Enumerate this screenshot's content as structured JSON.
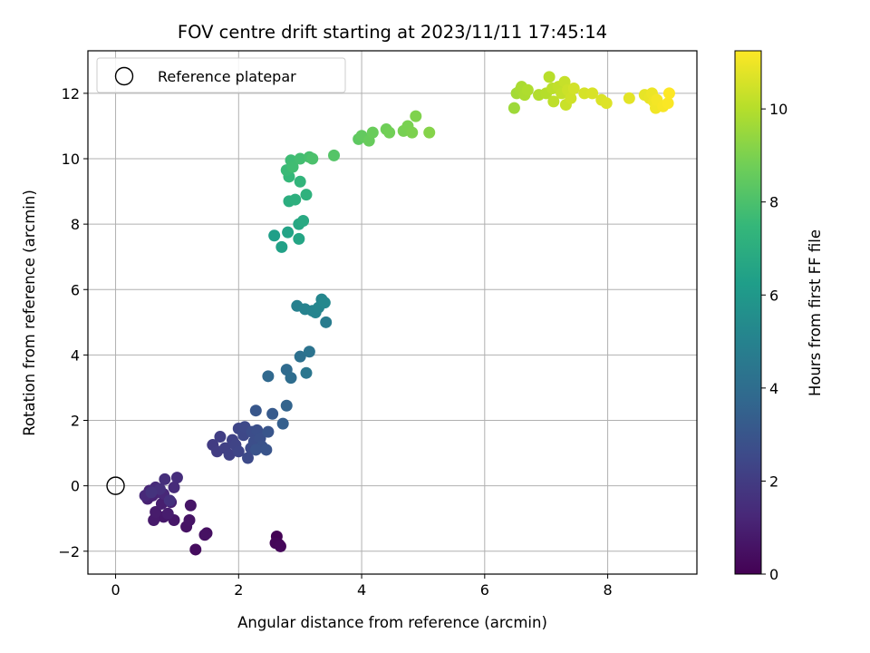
{
  "chart_data": {
    "type": "scatter",
    "title": "FOV centre drift starting at 2023/11/11 17:45:14",
    "xlabel": "Angular distance from reference (arcmin)",
    "ylabel": "Rotation from reference (arcmin)",
    "colorbar_label": "Hours from first FF file",
    "colormap": "viridis",
    "xlim": [
      -0.45,
      9.45
    ],
    "ylim": [
      -2.7,
      13.3
    ],
    "xticks": [
      0,
      2,
      4,
      6,
      8
    ],
    "yticks": [
      -2,
      0,
      2,
      4,
      6,
      8,
      10,
      12
    ],
    "xtick_labels": [
      "0",
      "2",
      "4",
      "6",
      "8"
    ],
    "ytick_labels": [
      "−2",
      "0",
      "2",
      "4",
      "6",
      "8",
      "10",
      "12"
    ],
    "colorbar_range": [
      0,
      11.25
    ],
    "colorbar_ticks": [
      0,
      2,
      4,
      6,
      8,
      10
    ],
    "colorbar_tick_labels": [
      "0",
      "2",
      "4",
      "6",
      "8",
      "10"
    ],
    "grid": true,
    "legend_position": "top-left",
    "reference": {
      "label": "Reference platepar",
      "x": 0,
      "y": 0
    },
    "points": [
      {
        "x": 2.62,
        "y": -1.55,
        "t": 0.05
      },
      {
        "x": 2.66,
        "y": -1.8,
        "t": 0.1
      },
      {
        "x": 2.6,
        "y": -1.75,
        "t": 0.15
      },
      {
        "x": 2.68,
        "y": -1.85,
        "t": 0.2
      },
      {
        "x": 1.3,
        "y": -1.95,
        "t": 0.35
      },
      {
        "x": 1.48,
        "y": -1.45,
        "t": 0.45
      },
      {
        "x": 1.45,
        "y": -1.5,
        "t": 0.5
      },
      {
        "x": 1.15,
        "y": -1.25,
        "t": 0.55
      },
      {
        "x": 1.2,
        "y": -1.05,
        "t": 0.6
      },
      {
        "x": 1.22,
        "y": -0.6,
        "t": 0.65
      },
      {
        "x": 0.95,
        "y": -1.05,
        "t": 0.7
      },
      {
        "x": 0.78,
        "y": -0.95,
        "t": 0.75
      },
      {
        "x": 0.62,
        "y": -1.05,
        "t": 0.8
      },
      {
        "x": 0.65,
        "y": -0.8,
        "t": 0.85
      },
      {
        "x": 0.85,
        "y": -0.85,
        "t": 0.9
      },
      {
        "x": 0.75,
        "y": -0.55,
        "t": 0.95
      },
      {
        "x": 0.9,
        "y": -0.5,
        "t": 1.0
      },
      {
        "x": 0.52,
        "y": -0.4,
        "t": 1.05
      },
      {
        "x": 0.6,
        "y": -0.3,
        "t": 1.1
      },
      {
        "x": 0.7,
        "y": -0.2,
        "t": 1.15
      },
      {
        "x": 0.55,
        "y": -0.15,
        "t": 1.2
      },
      {
        "x": 0.78,
        "y": -0.25,
        "t": 1.25
      },
      {
        "x": 0.48,
        "y": -0.3,
        "t": 1.3
      },
      {
        "x": 0.65,
        "y": -0.05,
        "t": 1.35
      },
      {
        "x": 0.95,
        "y": -0.05,
        "t": 1.4
      },
      {
        "x": 1.0,
        "y": 0.25,
        "t": 1.45
      },
      {
        "x": 0.8,
        "y": 0.2,
        "t": 1.5
      },
      {
        "x": 0.72,
        "y": -0.1,
        "t": 1.55
      },
      {
        "x": 0.88,
        "y": -0.45,
        "t": 1.6
      },
      {
        "x": 0.58,
        "y": -0.2,
        "t": 1.65
      },
      {
        "x": 1.58,
        "y": 1.25,
        "t": 2.0
      },
      {
        "x": 1.65,
        "y": 1.05,
        "t": 2.05
      },
      {
        "x": 1.7,
        "y": 1.5,
        "t": 2.1
      },
      {
        "x": 1.78,
        "y": 1.15,
        "t": 2.15
      },
      {
        "x": 1.85,
        "y": 0.95,
        "t": 2.2
      },
      {
        "x": 1.9,
        "y": 1.4,
        "t": 2.25
      },
      {
        "x": 1.95,
        "y": 1.25,
        "t": 2.3
      },
      {
        "x": 2.0,
        "y": 1.05,
        "t": 2.35
      },
      {
        "x": 2.0,
        "y": 1.75,
        "t": 2.4
      },
      {
        "x": 2.08,
        "y": 1.55,
        "t": 2.45
      },
      {
        "x": 2.1,
        "y": 1.8,
        "t": 2.5
      },
      {
        "x": 2.15,
        "y": 0.85,
        "t": 2.55
      },
      {
        "x": 2.2,
        "y": 1.15,
        "t": 2.6
      },
      {
        "x": 2.22,
        "y": 1.65,
        "t": 2.65
      },
      {
        "x": 2.25,
        "y": 1.35,
        "t": 2.7
      },
      {
        "x": 2.3,
        "y": 1.7,
        "t": 2.75
      },
      {
        "x": 2.35,
        "y": 1.45,
        "t": 2.8
      },
      {
        "x": 2.38,
        "y": 1.2,
        "t": 2.85
      },
      {
        "x": 2.28,
        "y": 1.1,
        "t": 2.9
      },
      {
        "x": 2.45,
        "y": 1.1,
        "t": 2.95
      },
      {
        "x": 2.48,
        "y": 1.65,
        "t": 3.0
      },
      {
        "x": 2.28,
        "y": 2.3,
        "t": 3.05
      },
      {
        "x": 2.55,
        "y": 2.2,
        "t": 3.2
      },
      {
        "x": 2.72,
        "y": 1.9,
        "t": 3.4
      },
      {
        "x": 2.78,
        "y": 2.45,
        "t": 3.6
      },
      {
        "x": 2.48,
        "y": 3.35,
        "t": 3.8
      },
      {
        "x": 2.78,
        "y": 3.55,
        "t": 3.9
      },
      {
        "x": 2.85,
        "y": 3.3,
        "t": 4.0
      },
      {
        "x": 3.0,
        "y": 3.95,
        "t": 4.15
      },
      {
        "x": 3.15,
        "y": 4.1,
        "t": 4.3
      },
      {
        "x": 3.1,
        "y": 3.45,
        "t": 4.4
      },
      {
        "x": 3.42,
        "y": 5.0,
        "t": 4.7
      },
      {
        "x": 2.95,
        "y": 5.5,
        "t": 4.9
      },
      {
        "x": 3.08,
        "y": 5.4,
        "t": 5.0
      },
      {
        "x": 3.2,
        "y": 5.35,
        "t": 5.05
      },
      {
        "x": 3.25,
        "y": 5.3,
        "t": 5.1
      },
      {
        "x": 3.3,
        "y": 5.45,
        "t": 5.15
      },
      {
        "x": 3.35,
        "y": 5.7,
        "t": 5.2
      },
      {
        "x": 3.4,
        "y": 5.6,
        "t": 5.25
      },
      {
        "x": 2.58,
        "y": 7.65,
        "t": 6.3
      },
      {
        "x": 2.7,
        "y": 7.3,
        "t": 6.4
      },
      {
        "x": 2.8,
        "y": 7.75,
        "t": 6.5
      },
      {
        "x": 2.98,
        "y": 7.55,
        "t": 6.6
      },
      {
        "x": 2.98,
        "y": 8.0,
        "t": 6.7
      },
      {
        "x": 3.05,
        "y": 8.1,
        "t": 6.8
      },
      {
        "x": 2.82,
        "y": 8.7,
        "t": 7.0
      },
      {
        "x": 2.92,
        "y": 8.75,
        "t": 7.1
      },
      {
        "x": 3.1,
        "y": 8.9,
        "t": 7.2
      },
      {
        "x": 3.0,
        "y": 9.3,
        "t": 7.35
      },
      {
        "x": 2.82,
        "y": 9.45,
        "t": 7.5
      },
      {
        "x": 2.78,
        "y": 9.65,
        "t": 7.6
      },
      {
        "x": 2.85,
        "y": 9.95,
        "t": 7.7
      },
      {
        "x": 2.88,
        "y": 9.75,
        "t": 7.75
      },
      {
        "x": 3.0,
        "y": 10.0,
        "t": 7.8
      },
      {
        "x": 3.15,
        "y": 10.05,
        "t": 7.9
      },
      {
        "x": 3.2,
        "y": 10.0,
        "t": 8.0
      },
      {
        "x": 3.55,
        "y": 10.1,
        "t": 8.2
      },
      {
        "x": 3.95,
        "y": 10.6,
        "t": 8.4
      },
      {
        "x": 4.0,
        "y": 10.7,
        "t": 8.5
      },
      {
        "x": 4.12,
        "y": 10.55,
        "t": 8.6
      },
      {
        "x": 4.18,
        "y": 10.8,
        "t": 8.65
      },
      {
        "x": 4.4,
        "y": 10.9,
        "t": 8.75
      },
      {
        "x": 4.45,
        "y": 10.8,
        "t": 8.8
      },
      {
        "x": 4.68,
        "y": 10.85,
        "t": 8.9
      },
      {
        "x": 4.75,
        "y": 11.0,
        "t": 8.95
      },
      {
        "x": 4.82,
        "y": 10.8,
        "t": 9.0
      },
      {
        "x": 4.88,
        "y": 11.3,
        "t": 9.05
      },
      {
        "x": 5.1,
        "y": 10.8,
        "t": 9.15
      },
      {
        "x": 6.48,
        "y": 11.55,
        "t": 9.6
      },
      {
        "x": 6.52,
        "y": 12.0,
        "t": 9.7
      },
      {
        "x": 6.58,
        "y": 12.1,
        "t": 9.75
      },
      {
        "x": 6.6,
        "y": 12.2,
        "t": 9.8
      },
      {
        "x": 6.65,
        "y": 11.95,
        "t": 9.85
      },
      {
        "x": 6.7,
        "y": 12.1,
        "t": 9.9
      },
      {
        "x": 6.88,
        "y": 11.95,
        "t": 9.95
      },
      {
        "x": 7.0,
        "y": 12.0,
        "t": 10.0
      },
      {
        "x": 7.05,
        "y": 12.5,
        "t": 10.05
      },
      {
        "x": 7.1,
        "y": 12.15,
        "t": 10.1
      },
      {
        "x": 7.12,
        "y": 11.75,
        "t": 10.15
      },
      {
        "x": 7.2,
        "y": 12.2,
        "t": 10.2
      },
      {
        "x": 7.25,
        "y": 12.0,
        "t": 10.25
      },
      {
        "x": 7.3,
        "y": 12.35,
        "t": 10.3
      },
      {
        "x": 7.32,
        "y": 11.65,
        "t": 10.35
      },
      {
        "x": 7.35,
        "y": 12.1,
        "t": 10.4
      },
      {
        "x": 7.4,
        "y": 11.85,
        "t": 10.45
      },
      {
        "x": 7.45,
        "y": 12.15,
        "t": 10.5
      },
      {
        "x": 7.62,
        "y": 12.0,
        "t": 10.55
      },
      {
        "x": 7.75,
        "y": 12.0,
        "t": 10.6
      },
      {
        "x": 7.9,
        "y": 11.8,
        "t": 10.65
      },
      {
        "x": 7.98,
        "y": 11.7,
        "t": 10.7
      },
      {
        "x": 8.35,
        "y": 11.85,
        "t": 10.8
      },
      {
        "x": 8.6,
        "y": 11.95,
        "t": 10.85
      },
      {
        "x": 8.68,
        "y": 11.85,
        "t": 10.9
      },
      {
        "x": 8.72,
        "y": 12.0,
        "t": 10.95
      },
      {
        "x": 8.75,
        "y": 11.75,
        "t": 11.0
      },
      {
        "x": 8.78,
        "y": 11.55,
        "t": 11.05
      },
      {
        "x": 8.8,
        "y": 11.8,
        "t": 11.1
      },
      {
        "x": 8.9,
        "y": 11.6,
        "t": 11.15
      },
      {
        "x": 8.98,
        "y": 11.7,
        "t": 11.2
      },
      {
        "x": 9.0,
        "y": 12.0,
        "t": 11.25
      }
    ]
  }
}
